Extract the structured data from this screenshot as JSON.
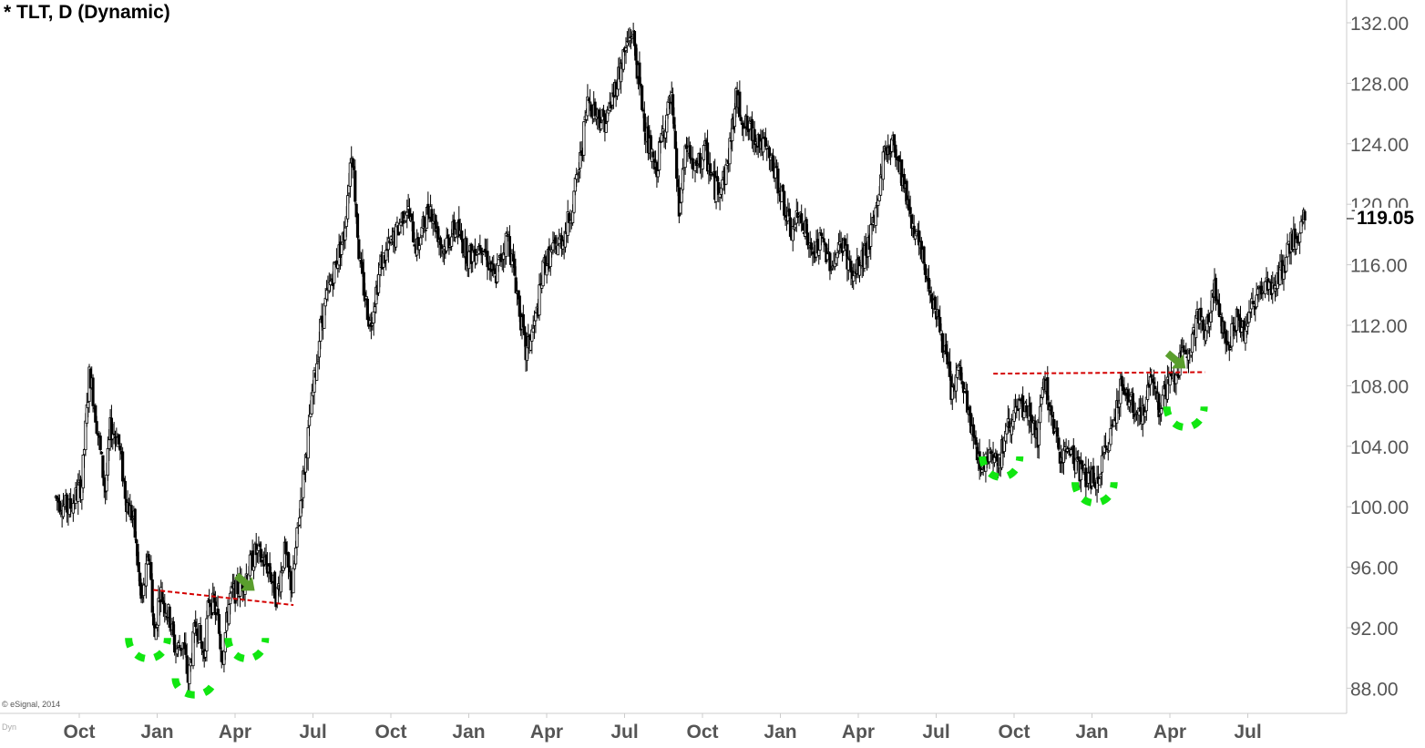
{
  "chart_data": {
    "type": "candlestick",
    "title": "* TLT, D (Dynamic)",
    "last_price": "119.05",
    "copyright": "© eSignal, 2014",
    "corner_label": "Dyn",
    "ylim": [
      86.5,
      133.5
    ],
    "y_ticks": [
      {
        "value": 132,
        "label": "132.00"
      },
      {
        "value": 128,
        "label": "128.00"
      },
      {
        "value": 124,
        "label": "124.00"
      },
      {
        "value": 120,
        "label": "120.00"
      },
      {
        "value": 116,
        "label": "116.00"
      },
      {
        "value": 112,
        "label": "112.00"
      },
      {
        "value": 108,
        "label": "108.00"
      },
      {
        "value": 104,
        "label": "104.00"
      },
      {
        "value": 100,
        "label": "100.00"
      },
      {
        "value": 96,
        "label": "96.00"
      },
      {
        "value": 92,
        "label": "92.00"
      },
      {
        "value": 88,
        "label": "88.00"
      }
    ],
    "x_ticks": [
      "Oct",
      "Jan",
      "Apr",
      "Jul",
      "Oct",
      "Jan",
      "Apr",
      "Jul",
      "Oct",
      "Jan",
      "Apr",
      "Jul",
      "Oct",
      "Jan",
      "Apr",
      "Jul"
    ],
    "x_tick_index": [
      0,
      3,
      6,
      9,
      12,
      15,
      18,
      21,
      24,
      27,
      30,
      33,
      36,
      39,
      42,
      45
    ],
    "months_total": 48.5,
    "price_path": [
      [
        -0.9,
        100.6
      ],
      [
        -0.4,
        99.8
      ],
      [
        0.1,
        101.5
      ],
      [
        0.4,
        109.0
      ],
      [
        0.6,
        106.5
      ],
      [
        1.0,
        101.0
      ],
      [
        1.2,
        105.2
      ],
      [
        1.5,
        104.5
      ],
      [
        1.8,
        100.5
      ],
      [
        2.1,
        99.0
      ],
      [
        2.4,
        93.5
      ],
      [
        2.7,
        97.0
      ],
      [
        2.9,
        91.0
      ],
      [
        3.1,
        94.5
      ],
      [
        3.5,
        92.5
      ],
      [
        3.7,
        90.5
      ],
      [
        4.0,
        91.0
      ],
      [
        4.2,
        88.5
      ],
      [
        4.5,
        92.5
      ],
      [
        4.8,
        90.0
      ],
      [
        5.0,
        94.0
      ],
      [
        5.3,
        93.0
      ],
      [
        5.5,
        90.0
      ],
      [
        5.8,
        94.0
      ],
      [
        6.3,
        95.0
      ],
      [
        6.8,
        97.0
      ],
      [
        7.3,
        96.0
      ],
      [
        7.6,
        94.0
      ],
      [
        7.9,
        97.0
      ],
      [
        8.2,
        94.5
      ],
      [
        8.5,
        100.0
      ],
      [
        8.9,
        106.0
      ],
      [
        9.3,
        112.0
      ],
      [
        9.7,
        115.0
      ],
      [
        10.2,
        118.0
      ],
      [
        10.5,
        124.0
      ],
      [
        10.8,
        116.0
      ],
      [
        11.2,
        112.0
      ],
      [
        11.6,
        116.0
      ],
      [
        12.2,
        118.0
      ],
      [
        12.6,
        120.0
      ],
      [
        13.0,
        117.0
      ],
      [
        13.5,
        120.0
      ],
      [
        14.0,
        117.0
      ],
      [
        14.5,
        118.5
      ],
      [
        15.0,
        116.5
      ],
      [
        15.5,
        117.5
      ],
      [
        16.0,
        115.0
      ],
      [
        16.5,
        118.0
      ],
      [
        16.8,
        115.0
      ],
      [
        17.2,
        110.0
      ],
      [
        17.6,
        112.5
      ],
      [
        17.9,
        116.0
      ],
      [
        18.3,
        117.0
      ],
      [
        18.7,
        118.0
      ],
      [
        19.0,
        120.0
      ],
      [
        19.3,
        123.0
      ],
      [
        19.6,
        127.0
      ],
      [
        19.9,
        126.0
      ],
      [
        20.3,
        125.5
      ],
      [
        20.6,
        127.5
      ],
      [
        21.0,
        130.0
      ],
      [
        21.3,
        131.5
      ],
      [
        21.6,
        127.5
      ],
      [
        21.9,
        124.0
      ],
      [
        22.2,
        122.0
      ],
      [
        22.5,
        125.0
      ],
      [
        22.8,
        127.0
      ],
      [
        23.1,
        119.5
      ],
      [
        23.4,
        124.0
      ],
      [
        23.7,
        122.0
      ],
      [
        24.1,
        123.5
      ],
      [
        24.5,
        121.0
      ],
      [
        24.9,
        122.0
      ],
      [
        25.3,
        127.0
      ],
      [
        25.7,
        125.0
      ],
      [
        26.1,
        124.5
      ],
      [
        26.6,
        123.0
      ],
      [
        27.0,
        121.0
      ],
      [
        27.4,
        118.0
      ],
      [
        27.8,
        119.5
      ],
      [
        28.2,
        116.5
      ],
      [
        28.6,
        117.5
      ],
      [
        29.0,
        116.0
      ],
      [
        29.4,
        117.5
      ],
      [
        29.8,
        115.0
      ],
      [
        30.2,
        116.5
      ],
      [
        30.6,
        118.5
      ],
      [
        31.0,
        123.5
      ],
      [
        31.4,
        124.0
      ],
      [
        31.8,
        121.0
      ],
      [
        32.2,
        118.0
      ],
      [
        32.6,
        115.5
      ],
      [
        33.0,
        113.0
      ],
      [
        33.3,
        110.5
      ],
      [
        33.6,
        107.5
      ],
      [
        33.9,
        109.0
      ],
      [
        34.2,
        106.5
      ],
      [
        34.5,
        104.0
      ],
      [
        34.8,
        102.5
      ],
      [
        35.1,
        104.0
      ],
      [
        35.4,
        102.8
      ],
      [
        35.8,
        105.5
      ],
      [
        36.2,
        106.5
      ],
      [
        36.6,
        106.0
      ],
      [
        36.9,
        104.5
      ],
      [
        37.2,
        108.5
      ],
      [
        37.5,
        105.0
      ],
      [
        37.8,
        103.5
      ],
      [
        38.2,
        103.8
      ],
      [
        38.5,
        102.5
      ],
      [
        38.8,
        102.0
      ],
      [
        39.2,
        101.5
      ],
      [
        39.5,
        103.5
      ],
      [
        39.8,
        105.5
      ],
      [
        40.1,
        108.0
      ],
      [
        40.4,
        107.0
      ],
      [
        40.7,
        106.5
      ],
      [
        41.0,
        106.0
      ],
      [
        41.3,
        109.0
      ],
      [
        41.6,
        106.5
      ],
      [
        41.9,
        108.0
      ],
      [
        42.2,
        108.5
      ],
      [
        42.5,
        110.0
      ],
      [
        42.8,
        111.0
      ],
      [
        43.1,
        112.5
      ],
      [
        43.4,
        111.5
      ],
      [
        43.7,
        114.5
      ],
      [
        44.0,
        112.0
      ],
      [
        44.3,
        111.0
      ],
      [
        44.6,
        112.5
      ],
      [
        44.9,
        111.5
      ],
      [
        45.2,
        113.5
      ],
      [
        45.5,
        114.5
      ],
      [
        45.8,
        115.0
      ],
      [
        46.1,
        114.5
      ],
      [
        46.4,
        116.0
      ],
      [
        46.7,
        117.5
      ],
      [
        47.0,
        118.0
      ],
      [
        47.2,
        119.1
      ]
    ],
    "necklines": [
      {
        "from": [
          2.85,
          94.5
        ],
        "to": [
          8.25,
          93.5
        ]
      },
      {
        "from": [
          35.2,
          108.8
        ],
        "to": [
          43.35,
          108.9
        ]
      }
    ],
    "breakout_arrows": [
      {
        "at": [
          6.65,
          94.6
        ]
      },
      {
        "at": [
          42.5,
          109.3
        ]
      }
    ],
    "pattern_arcs": [
      {
        "center": [
          2.65,
          90.5
        ],
        "radius_months": 0.75,
        "radius_price": 2.5
      },
      {
        "center": [
          4.45,
          88.0
        ],
        "radius_months": 0.75,
        "radius_price": 2.0
      },
      {
        "center": [
          6.45,
          90.5
        ],
        "radius_months": 0.72,
        "radius_price": 2.5
      },
      {
        "center": [
          35.5,
          102.5
        ],
        "radius_months": 0.72,
        "radius_price": 2.5
      },
      {
        "center": [
          39.1,
          100.8
        ],
        "radius_months": 0.75,
        "radius_price": 2.5
      },
      {
        "center": [
          42.6,
          105.8
        ],
        "radius_months": 0.72,
        "radius_price": 2.5
      }
    ],
    "colors": {
      "candles": "#000000",
      "neckline": "#d40000",
      "arcs": "#11e611",
      "arrow": "#5a9e2d",
      "axis_text": "#555555",
      "axis_line": "#cccccc"
    },
    "grid": false,
    "legend": "none"
  }
}
